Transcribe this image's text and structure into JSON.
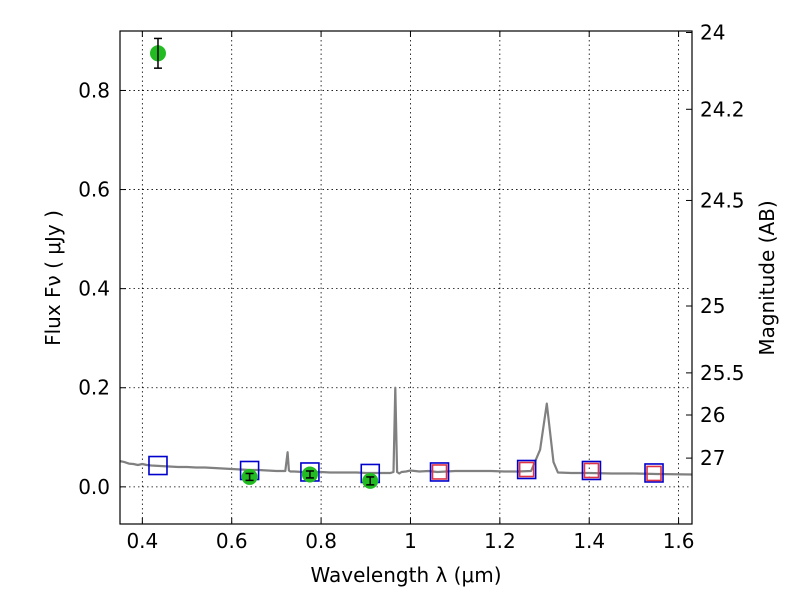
{
  "chart_data": {
    "type": "scatter",
    "xlabel": "Wavelength  λ (μm)",
    "ylabel": "Flux  Fν  ( μJy )",
    "y2label": "Magnitude (AB)",
    "xlim": [
      0.35,
      1.63
    ],
    "ylim": [
      -0.075,
      0.92
    ],
    "grid": true,
    "x_ticks": [
      0.4,
      0.6,
      0.8,
      1.0,
      1.2,
      1.4,
      1.6
    ],
    "x_tick_labels": [
      "0.4",
      "0.6",
      "0.8",
      "1",
      "1.2",
      "1.4",
      "1.6"
    ],
    "y_ticks": [
      0.0,
      0.2,
      0.4,
      0.6,
      0.8
    ],
    "y_tick_labels": [
      "0.0",
      "0.2",
      "0.4",
      "0.6",
      "0.8"
    ],
    "y2_ticks": [
      {
        "label": "24",
        "flux": 0.917
      },
      {
        "label": "24.2",
        "flux": 0.762
      },
      {
        "label": "24.5",
        "flux": 0.578
      },
      {
        "label": "25",
        "flux": 0.365
      },
      {
        "label": "25.5",
        "flux": 0.23
      },
      {
        "label": "26",
        "flux": 0.145
      },
      {
        "label": "27",
        "flux": 0.058
      }
    ],
    "series": [
      {
        "kind": "line",
        "color": "#808080",
        "x": [
          0.35,
          0.36,
          0.37,
          0.38,
          0.39,
          0.4,
          0.41,
          0.42,
          0.44,
          0.46,
          0.48,
          0.5,
          0.52,
          0.54,
          0.56,
          0.58,
          0.6,
          0.62,
          0.64,
          0.66,
          0.68,
          0.7,
          0.72,
          0.725,
          0.728,
          0.731,
          0.74,
          0.76,
          0.78,
          0.8,
          0.82,
          0.84,
          0.86,
          0.88,
          0.9,
          0.92,
          0.94,
          0.955,
          0.962,
          0.966,
          0.97,
          0.975,
          0.98,
          0.99,
          1.0,
          1.02,
          1.04,
          1.06,
          1.08,
          1.1,
          1.12,
          1.15,
          1.18,
          1.21,
          1.24,
          1.27,
          1.29,
          1.305,
          1.32,
          1.33,
          1.36,
          1.4,
          1.45,
          1.5,
          1.55,
          1.63
        ],
        "y": [
          0.052,
          0.05,
          0.047,
          0.046,
          0.044,
          0.046,
          0.044,
          0.043,
          0.042,
          0.041,
          0.04,
          0.04,
          0.039,
          0.039,
          0.038,
          0.037,
          0.036,
          0.035,
          0.034,
          0.034,
          0.033,
          0.032,
          0.032,
          0.07,
          0.033,
          0.031,
          0.031,
          0.03,
          0.03,
          0.03,
          0.029,
          0.029,
          0.029,
          0.029,
          0.028,
          0.028,
          0.028,
          0.028,
          0.03,
          0.2,
          0.03,
          0.027,
          0.03,
          0.031,
          0.033,
          0.031,
          0.032,
          0.03,
          0.031,
          0.032,
          0.032,
          0.032,
          0.032,
          0.031,
          0.031,
          0.032,
          0.075,
          0.168,
          0.05,
          0.029,
          0.028,
          0.028,
          0.027,
          0.027,
          0.026,
          0.025
        ]
      },
      {
        "kind": "observed",
        "color": "#22bb22",
        "x": [
          0.435,
          0.64,
          0.775,
          0.91
        ],
        "y": [
          0.875,
          0.02,
          0.025,
          0.012
        ],
        "yerr": [
          0.03,
          0.007,
          0.007,
          0.008
        ]
      },
      {
        "kind": "model",
        "color": "#0000cc",
        "marker": "square",
        "x": [
          0.435,
          0.64,
          0.775,
          0.91,
          1.065,
          1.26,
          1.405,
          1.545
        ],
        "y": [
          0.043,
          0.033,
          0.03,
          0.027,
          0.03,
          0.035,
          0.033,
          0.028
        ]
      },
      {
        "kind": "model",
        "color": "#dd3344",
        "marker": "square",
        "x": [
          1.065,
          1.26,
          1.405,
          1.545
        ],
        "y": [
          0.03,
          0.035,
          0.033,
          0.027
        ]
      }
    ]
  }
}
